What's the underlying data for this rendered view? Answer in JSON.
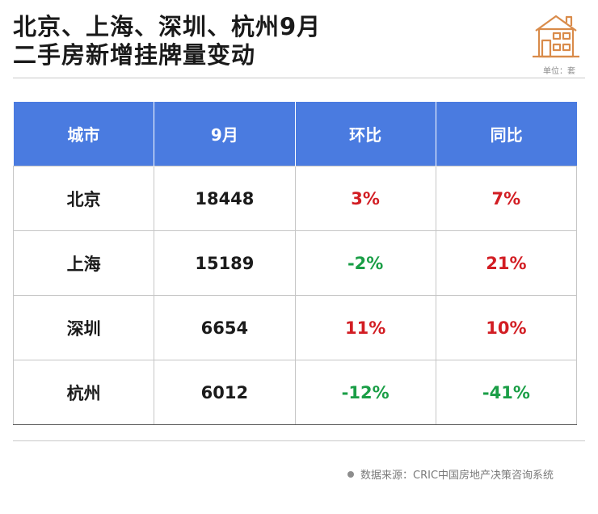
{
  "title": {
    "line1": "北京、上海、深圳、杭州9月",
    "line2": "二手房新增挂牌量变动"
  },
  "unit": "单位：套",
  "table": {
    "headers": [
      "城市",
      "9月",
      "环比",
      "同比"
    ],
    "rows": [
      {
        "city": "北京",
        "sep": "18448",
        "mom": "3%",
        "yoy": "7%"
      },
      {
        "city": "上海",
        "sep": "15189",
        "mom": "-2%",
        "yoy": "21%"
      },
      {
        "city": "深圳",
        "sep": "6654",
        "mom": "11%",
        "yoy": "10%"
      },
      {
        "city": "杭州",
        "sep": "6012",
        "mom": "-12%",
        "yoy": "-41%"
      }
    ]
  },
  "source": "数据来源：CRIC中国房地产决策咨询系统",
  "colors": {
    "header_bg": "#4a7be0",
    "positive": "#d21d23",
    "negative": "#1a9e46",
    "icon": "#d98b4a"
  },
  "icons": {
    "house": "house-icon"
  },
  "chart_data": {
    "type": "table",
    "columns": [
      "城市",
      "9月",
      "环比",
      "同比"
    ],
    "rows": [
      [
        "北京",
        18448,
        "3%",
        "7%"
      ],
      [
        "上海",
        15189,
        "-2%",
        "21%"
      ],
      [
        "深圳",
        6654,
        "11%",
        "10%"
      ],
      [
        "杭州",
        6012,
        "-12%",
        "-41%"
      ]
    ]
  }
}
